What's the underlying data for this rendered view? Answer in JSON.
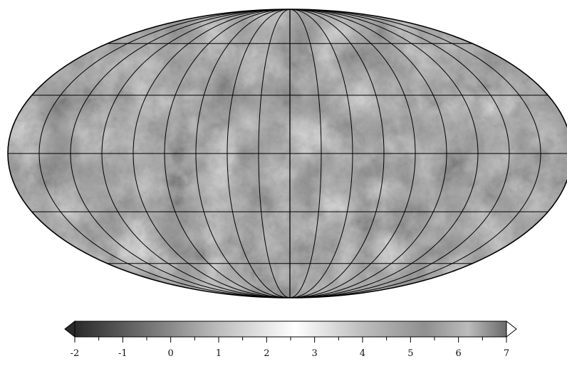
{
  "map": {
    "projection": "mollweide",
    "graticule": {
      "meridian_step_deg": 20,
      "parallel_lats_deg": [
        -60,
        -30,
        0,
        30,
        60
      ]
    },
    "shading": "grayscale-relief"
  },
  "colorbar": {
    "min": -2,
    "max": 7,
    "tick_labels": [
      "-2",
      "-1",
      "0",
      "1",
      "2",
      "3",
      "4",
      "5",
      "6",
      "7"
    ],
    "minor_ticks_per_interval": 1,
    "extend_min_color": "#2a2a2a",
    "extend_max_color": "#ffffff",
    "gradient_stops": [
      {
        "value": -2,
        "color": "#2a2a2a"
      },
      {
        "value": -1,
        "color": "#5a5a5a"
      },
      {
        "value": 0,
        "color": "#8a8a8a"
      },
      {
        "value": 1,
        "color": "#bdbdbd"
      },
      {
        "value": 2.6,
        "color": "#ffffff"
      },
      {
        "value": 4,
        "color": "#bdbdbd"
      },
      {
        "value": 5.3,
        "color": "#8f8f8f"
      },
      {
        "value": 6.2,
        "color": "#bcbcbc"
      },
      {
        "value": 7,
        "color": "#6a6a6a"
      }
    ]
  }
}
